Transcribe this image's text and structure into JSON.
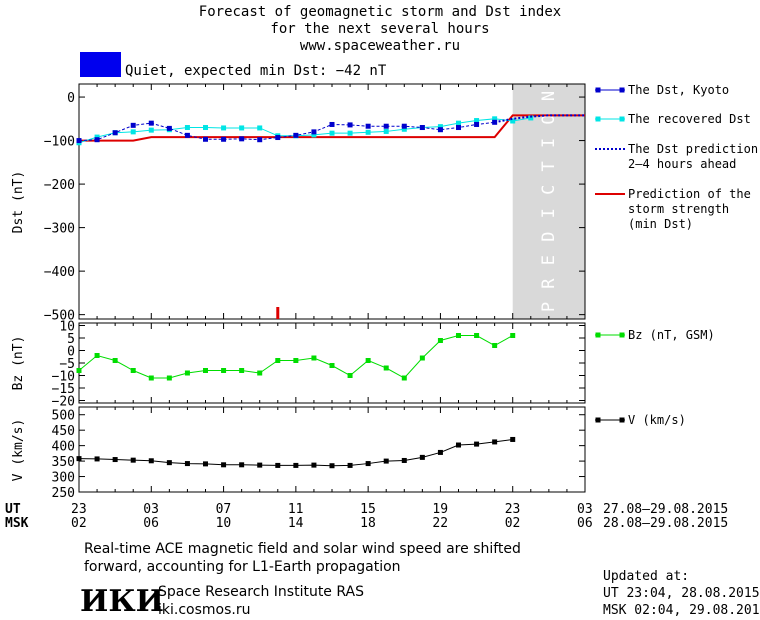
{
  "header": {
    "title_line1": "Forecast of geomagnetic storm and Dst index",
    "title_line2": "for the next several hours",
    "title_line3": "www.spaceweather.ru",
    "status_text": "Quiet, expected min Dst: −42 nT",
    "status_color": "#0000ee"
  },
  "legend": {
    "dst_kyoto": "The Dst, Kyoto",
    "dst_recovered": "The recovered Dst",
    "dst_prediction_1": "The Dst prediction",
    "dst_prediction_2": "2–4 hours ahead",
    "storm_1": "Prediction of the",
    "storm_2": "storm strength",
    "storm_3": "(min Dst)",
    "bz": "Bz (nT, GSM)",
    "v": "V (km/s)"
  },
  "prediction_label": "PREDICTION",
  "axes": {
    "ut_label": "UT",
    "msk_label": "MSK",
    "ut_ticks": [
      "23",
      "03",
      "07",
      "11",
      "15",
      "19",
      "23",
      "03"
    ],
    "msk_ticks": [
      "02",
      "06",
      "10",
      "14",
      "18",
      "22",
      "02",
      "06"
    ],
    "ut_range": "27.08–29.08.2015",
    "msk_range": "28.08–29.08.2015"
  },
  "footer": {
    "note_line1": "Real-time ACE magnetic field and solar wind speed are shifted",
    "note_line2": "forward, accounting for L1-Earth propagation",
    "logo_text": "ИКИ",
    "institute": "Space Research Institute RAS",
    "site": "iki.cosmos.ru",
    "updated_label": "Updated at:",
    "updated_ut": "UT   23:04, 28.08.2015",
    "updated_msk": "MSK 02:04, 29.08.2015"
  },
  "colors": {
    "kyoto": "#0000cc",
    "recovered": "#00e5e5",
    "prediction_dots": "#0000cc",
    "storm": "#dd0000",
    "bz": "#00dd00",
    "v": "#000000",
    "prediction_zone": "#d9d9d9"
  },
  "chart_data": [
    {
      "type": "line",
      "ylabel": "Dst (nT)",
      "ylim": [
        -510,
        30
      ],
      "yticks": [
        0,
        -100,
        -200,
        -300,
        -400,
        -500
      ],
      "x_hours_ut_from_2300": true,
      "xlim": [
        0,
        28
      ],
      "prediction_zone_start": 24,
      "series": [
        {
          "name": "The Dst, Kyoto",
          "x": [
            0,
            1,
            2,
            3,
            4,
            5,
            6,
            7,
            8,
            9,
            10,
            11,
            12,
            13,
            14,
            15,
            16,
            17,
            18,
            19,
            20,
            21,
            22,
            23
          ],
          "values": [
            -100,
            -98,
            -82,
            -65,
            -60,
            -72,
            -88,
            -97,
            -97,
            -96,
            -98,
            -93,
            -88,
            -80,
            -63,
            -64,
            -67,
            -67,
            -67,
            -70,
            -75,
            -70,
            -63,
            -58
          ]
        },
        {
          "name": "The recovered Dst",
          "x": [
            0,
            1,
            2,
            3,
            4,
            5,
            6,
            7,
            8,
            9,
            10,
            11,
            12,
            13,
            14,
            15,
            16,
            17,
            18,
            19,
            20,
            21,
            22,
            23,
            24,
            25
          ],
          "values": [
            -105,
            -92,
            -82,
            -80,
            -76,
            -75,
            -70,
            -70,
            -71,
            -71,
            -71,
            -89,
            -89,
            -87,
            -83,
            -83,
            -81,
            -79,
            -74,
            -70,
            -68,
            -60,
            -54,
            -50,
            -55,
            -48
          ]
        },
        {
          "name": "The Dst prediction 2–4 hours ahead",
          "x": [
            23,
            24,
            25,
            26,
            27,
            28
          ],
          "values": [
            -58,
            -50,
            -45,
            -42,
            -42,
            -42
          ]
        },
        {
          "name": "Prediction of the storm strength (min Dst)",
          "x": [
            0,
            3,
            4,
            23,
            24,
            28
          ],
          "values": [
            -100,
            -100,
            -92,
            -92,
            -42,
            -42
          ]
        }
      ],
      "marker_tick": {
        "x": 11
      }
    },
    {
      "type": "line",
      "ylabel": "Bz (nT)",
      "ylim": [
        -21,
        11
      ],
      "yticks": [
        10,
        5,
        0,
        -5,
        -10,
        -15,
        -20
      ],
      "xlim": [
        0,
        28
      ],
      "series": [
        {
          "name": "Bz (nT, GSM)",
          "x": [
            0,
            1,
            2,
            3,
            4,
            5,
            6,
            7,
            8,
            9,
            10,
            11,
            12,
            13,
            14,
            15,
            16,
            17,
            18,
            19,
            20,
            21,
            22,
            23,
            24
          ],
          "values": [
            -8,
            -2,
            -4,
            -8,
            -11,
            -11,
            -9,
            -8,
            -8,
            -8,
            -9,
            -4,
            -4,
            -3,
            -6,
            -10,
            -4,
            -7,
            -11,
            -3,
            4,
            6,
            6,
            2,
            6
          ]
        }
      ]
    },
    {
      "type": "line",
      "ylabel": "V (km/s)",
      "ylim": [
        250,
        525
      ],
      "yticks": [
        500,
        450,
        400,
        350,
        300,
        250
      ],
      "xlim": [
        0,
        28
      ],
      "series": [
        {
          "name": "V (km/s)",
          "x": [
            0,
            1,
            2,
            3,
            4,
            5,
            6,
            7,
            8,
            9,
            10,
            11,
            12,
            13,
            14,
            15,
            16,
            17,
            18,
            19,
            20,
            21,
            22,
            23,
            24
          ],
          "values": [
            358,
            357,
            355,
            353,
            351,
            345,
            342,
            341,
            338,
            338,
            337,
            336,
            336,
            337,
            335,
            336,
            342,
            350,
            352,
            362,
            378,
            402,
            405,
            412,
            420
          ]
        }
      ]
    }
  ]
}
